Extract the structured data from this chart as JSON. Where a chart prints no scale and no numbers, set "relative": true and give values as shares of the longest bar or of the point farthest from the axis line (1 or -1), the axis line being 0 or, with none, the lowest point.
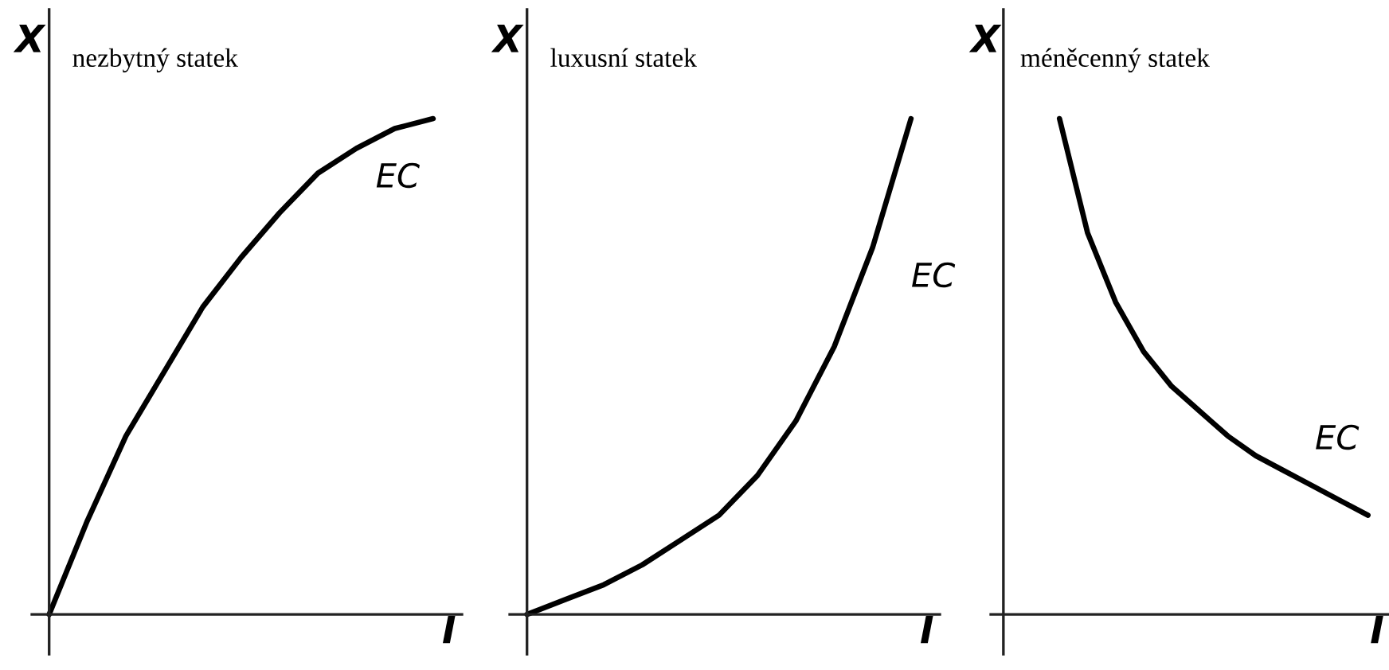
{
  "chart_data": [
    {
      "type": "line",
      "title": "nezbytný statek",
      "xlabel": "I",
      "ylabel": "X",
      "relative": true,
      "categories": [
        null,
        null,
        null,
        null,
        null,
        null,
        null,
        null,
        null,
        null,
        null
      ],
      "series": [
        {
          "name": "EC",
          "color": "#000000",
          "values": [
            0,
            0.19,
            0.36,
            0.49,
            0.62,
            0.72,
            0.81,
            0.89,
            0.94,
            0.98,
            1
          ]
        }
      ]
    },
    {
      "type": "line",
      "title": "luxusní statek",
      "xlabel": "I",
      "ylabel": "X",
      "relative": true,
      "categories": [
        null,
        null,
        null,
        null,
        null,
        null,
        null,
        null,
        null,
        null,
        null
      ],
      "series": [
        {
          "name": "EC",
          "color": "#000000",
          "values": [
            0,
            0.03,
            0.06,
            0.1,
            0.15,
            0.2,
            0.28,
            0.39,
            0.54,
            0.74,
            1
          ]
        }
      ]
    },
    {
      "type": "line",
      "title": "méněcenný statek",
      "xlabel": "I",
      "ylabel": "X",
      "relative": true,
      "categories": [
        null,
        null,
        null,
        null,
        null,
        null,
        null,
        null,
        null,
        null,
        null,
        null,
        null,
        null
      ],
      "series": [
        {
          "name": "EC",
          "color": "#000000",
          "values": [
            null,
            null,
            1,
            0.77,
            0.63,
            0.53,
            0.46,
            0.41,
            0.36,
            0.32,
            0.29,
            0.26,
            0.23,
            0.2
          ]
        }
      ]
    }
  ]
}
